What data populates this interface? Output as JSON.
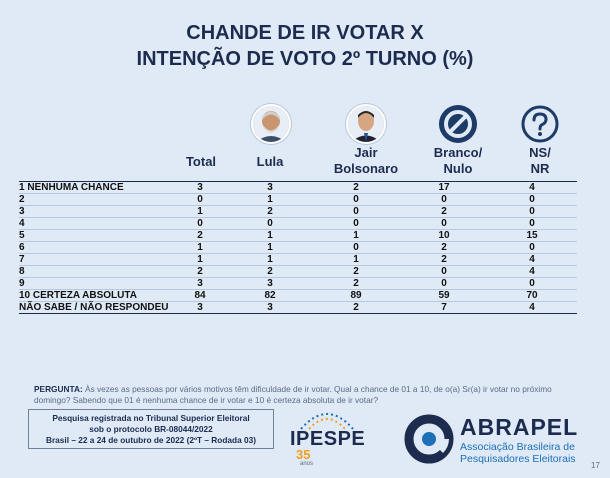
{
  "title": {
    "line1": "CHANDE DE IR VOTAR X",
    "line2": "INTENÇÃO DE VOTO 2º TURNO (%)"
  },
  "columns": {
    "total": "Total",
    "lula": "Lula",
    "jair_line1": "Jair",
    "jair_line2": "Bolsonaro",
    "branco_line1": "Branco/",
    "branco_line2": "Nulo",
    "ns_line1": "NS/",
    "ns_line2": "NR"
  },
  "rows": [
    {
      "label": "1 NENHUMA CHANCE",
      "total": "3",
      "lula": "3",
      "bolsonaro": "2",
      "branco": "17",
      "ns": "4"
    },
    {
      "label": "2",
      "total": "0",
      "lula": "1",
      "bolsonaro": "0",
      "branco": "0",
      "ns": "0"
    },
    {
      "label": "3",
      "total": "1",
      "lula": "2",
      "bolsonaro": "0",
      "branco": "2",
      "ns": "0"
    },
    {
      "label": "4",
      "total": "0",
      "lula": "0",
      "bolsonaro": "0",
      "branco": "0",
      "ns": "0"
    },
    {
      "label": "5",
      "total": "2",
      "lula": "1",
      "bolsonaro": "1",
      "branco": "10",
      "ns": "15"
    },
    {
      "label": "6",
      "total": "1",
      "lula": "1",
      "bolsonaro": "0",
      "branco": "2",
      "ns": "0"
    },
    {
      "label": "7",
      "total": "1",
      "lula": "1",
      "bolsonaro": "1",
      "branco": "2",
      "ns": "4"
    },
    {
      "label": "8",
      "total": "2",
      "lula": "2",
      "bolsonaro": "2",
      "branco": "0",
      "ns": "4"
    },
    {
      "label": "9",
      "total": "3",
      "lula": "3",
      "bolsonaro": "2",
      "branco": "0",
      "ns": "0"
    },
    {
      "label": "10 CERTEZA ABSOLUTA",
      "total": "84",
      "lula": "82",
      "bolsonaro": "89",
      "branco": "59",
      "ns": "70"
    },
    {
      "label": "NÃO SABE / NÃO RESPONDEU",
      "total": "3",
      "lula": "3",
      "bolsonaro": "2",
      "branco": "7",
      "ns": "4"
    }
  ],
  "question": {
    "label": "PERGUNTA:",
    "text": "Às vezes as pessoas por vários motivos têm dificuldade de ir votar. Qual a chance de 01 a 10, de o(a) Sr(a) ir votar no próximo domingo? Sabendo que 01 é nenhuma chance de ir votar e 10 é certeza absoluta de ir votar?"
  },
  "note": {
    "line1": "Pesquisa registrada no Tribunal Superior Eleitoral",
    "line2": "sob o protocolo BR-08044/2022",
    "line3": "Brasil – 22 a 24 de outubro de 2022 (2ºT – Rodada 03)"
  },
  "ipespe": {
    "name": "IPESPE",
    "years": "35",
    "anos": "anos"
  },
  "abrapel": {
    "name": "ABRAPEL",
    "line1": "Associação Brasileira de",
    "line2": "Pesquisadores Eleitorais"
  },
  "page_number": "17",
  "colors": {
    "navy": "#1d2b4f",
    "accent_blue": "#1d6fb8",
    "orange": "#f0a020"
  },
  "icons": [
    "lula-avatar-icon",
    "bolsonaro-avatar-icon",
    "prohibited-icon",
    "question-icon"
  ]
}
